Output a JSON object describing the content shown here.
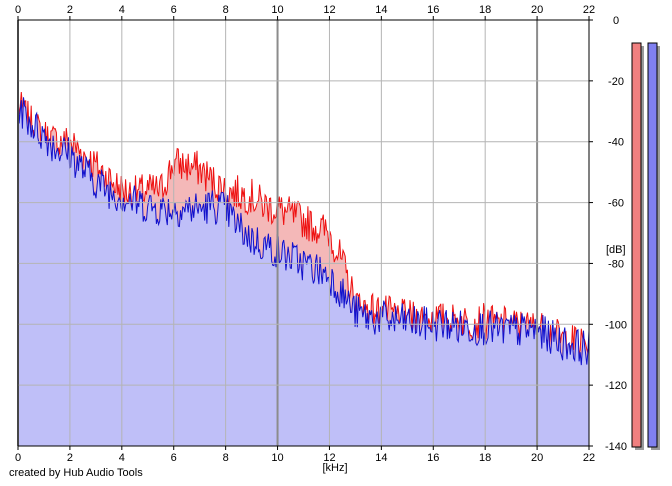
{
  "footer": {
    "credit": "created by Hub Audio Tools"
  },
  "chart_data": {
    "type": "area",
    "title": "",
    "xlabel": "[kHz]",
    "ylabel": "[dB]",
    "xlim": [
      0,
      22
    ],
    "ylim": [
      -140,
      0
    ],
    "x_ticks": [
      "0",
      "2",
      "4",
      "6",
      "8",
      "10",
      "12",
      "14",
      "16",
      "18",
      "20",
      "22"
    ],
    "y_ticks": [
      "0",
      "-20",
      "-40",
      "-60",
      "-80",
      "-100",
      "-120",
      "-140"
    ],
    "grid": true,
    "legend": "none",
    "series": [
      {
        "color": "#ee1111",
        "fill": "#f4b8b8",
        "x": [
          0,
          0.5,
          1,
          1.5,
          2,
          2.5,
          3,
          3.5,
          4,
          4.5,
          5,
          5.5,
          6,
          6.5,
          7,
          7.5,
          8,
          8.5,
          9,
          9.5,
          10,
          10.5,
          11,
          11.5,
          12,
          12.5,
          13,
          13.5,
          14,
          14.5,
          15,
          15.5,
          16,
          16.5,
          17,
          17.5,
          18,
          18.5,
          19,
          19.5,
          20,
          20.5,
          21,
          21.5,
          22
        ],
        "values": [
          -28,
          -34,
          -38,
          -40,
          -40,
          -44,
          -48,
          -52,
          -56,
          -57,
          -56,
          -56,
          -47,
          -48,
          -49,
          -53,
          -56,
          -57,
          -58,
          -61,
          -62,
          -64,
          -66,
          -68,
          -70,
          -80,
          -93,
          -95,
          -96,
          -97,
          -98,
          -98,
          -98,
          -99,
          -99,
          -99,
          -99,
          -100,
          -100,
          -101,
          -101,
          -103,
          -105,
          -106,
          -107
        ]
      },
      {
        "color": "#1111cc",
        "fill": "#bfbff8",
        "x": [
          0,
          0.5,
          1,
          1.5,
          2,
          2.5,
          3,
          3.5,
          4,
          4.5,
          5,
          5.5,
          6,
          6.5,
          7,
          7.5,
          8,
          8.5,
          9,
          9.5,
          10,
          10.5,
          11,
          11.5,
          12,
          12.5,
          13,
          13.5,
          14,
          14.5,
          15,
          15.5,
          16,
          16.5,
          17,
          17.5,
          18,
          18.5,
          19,
          19.5,
          20,
          20.5,
          21,
          21.5,
          22
        ],
        "values": [
          -28,
          -34,
          -38,
          -42,
          -44,
          -49,
          -53,
          -56,
          -58,
          -60,
          -61,
          -62,
          -62,
          -62,
          -62,
          -61,
          -62,
          -68,
          -72,
          -74,
          -76,
          -78,
          -80,
          -82,
          -84,
          -90,
          -96,
          -98,
          -98,
          -99,
          -99,
          -100,
          -100,
          -100,
          -101,
          -101,
          -101,
          -102,
          -102,
          -102,
          -102,
          -104,
          -106,
          -107,
          -108
        ]
      }
    ],
    "level_meters": [
      {
        "color": "#f08080"
      },
      {
        "color": "#8080f0"
      }
    ]
  }
}
